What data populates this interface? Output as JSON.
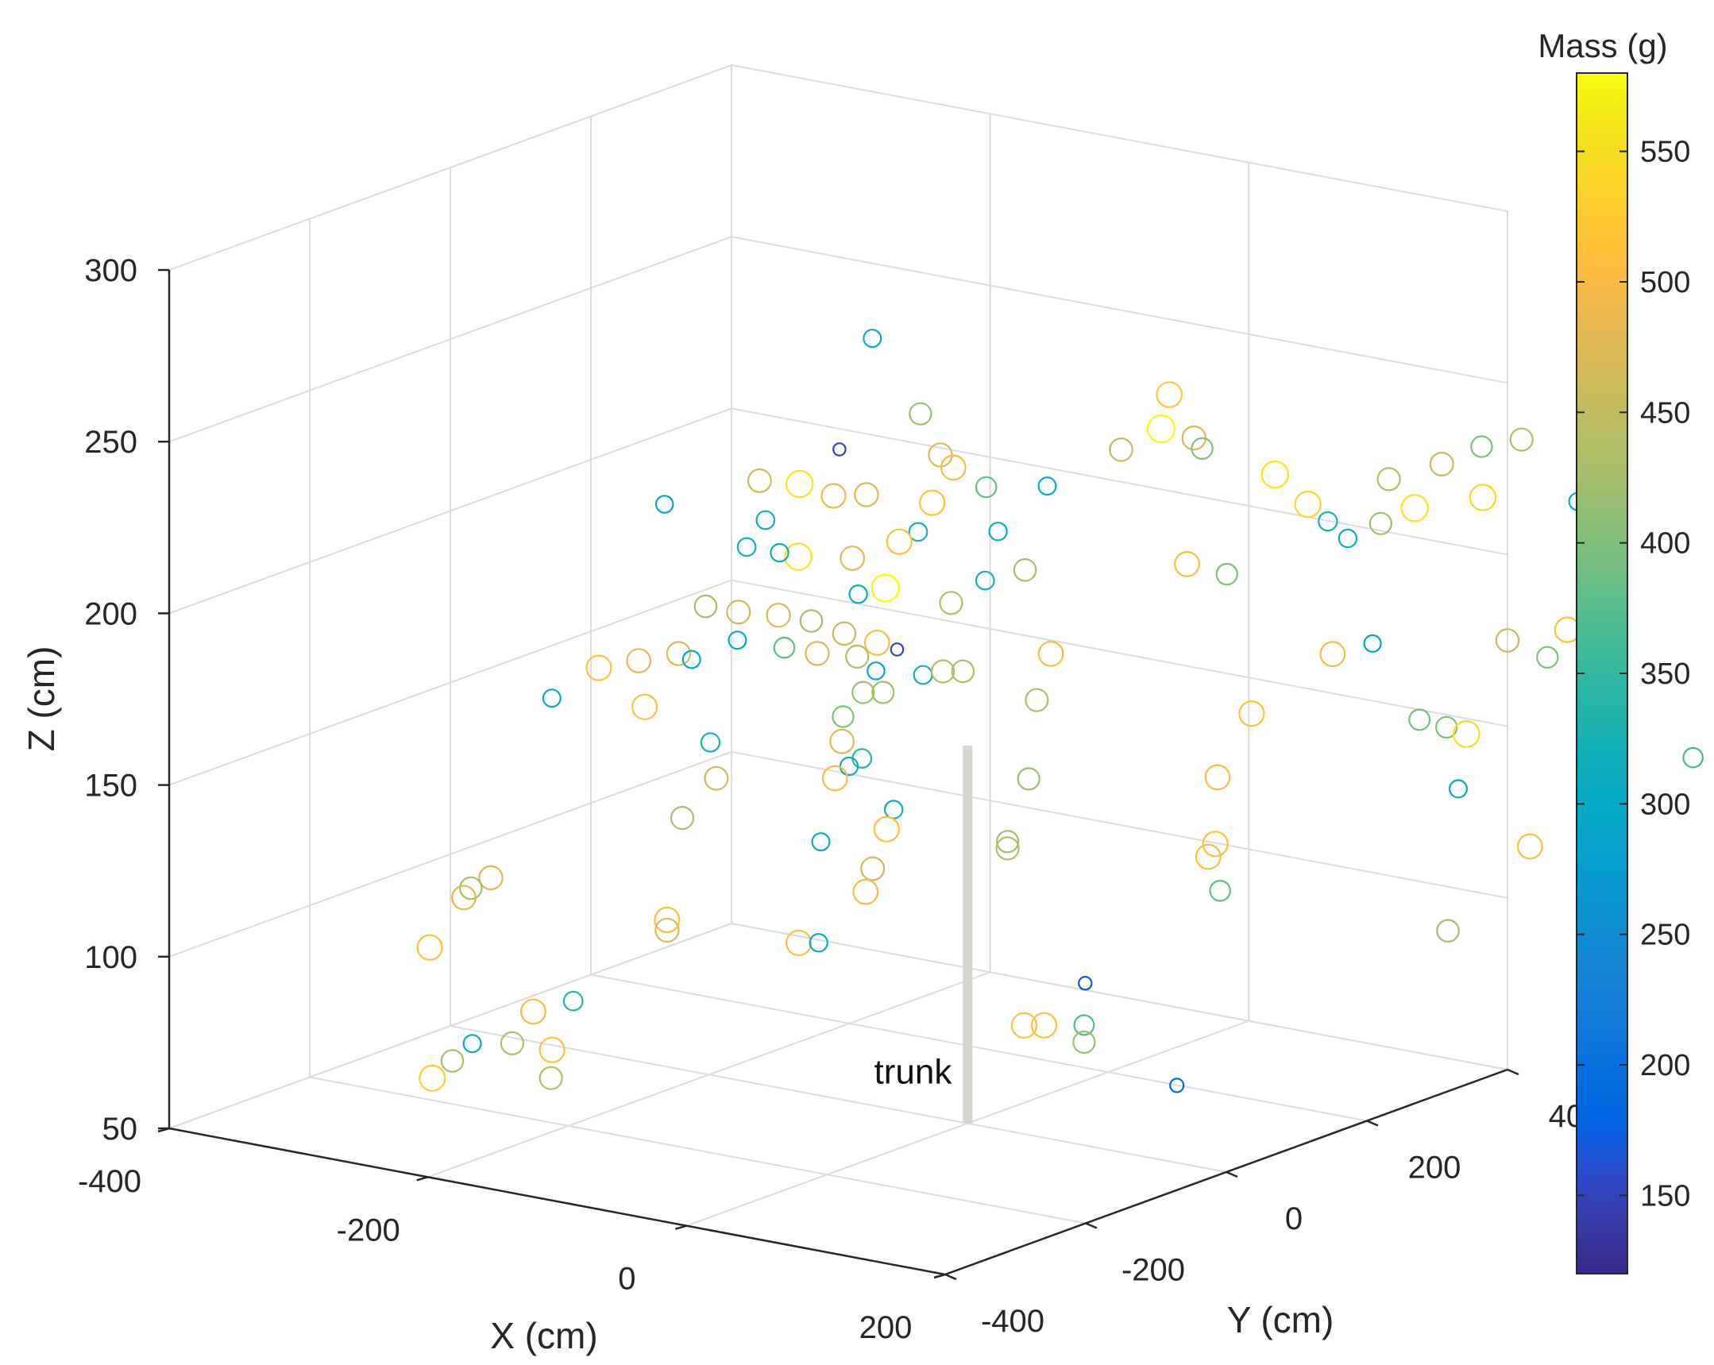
{
  "chart_data": {
    "type": "scatter3d",
    "xlabel": "X (cm)",
    "ylabel": "Y (cm)",
    "zlabel": "Z (cm)",
    "xlim": [
      -400,
      200
    ],
    "ylim": [
      -400,
      400
    ],
    "zlim": [
      50,
      300
    ],
    "x_ticks": [
      "-400",
      "-200",
      "0",
      "200"
    ],
    "y_ticks": [
      "-400",
      "-200",
      "0",
      "200",
      "400"
    ],
    "z_ticks": [
      "50",
      "100",
      "150",
      "200",
      "250",
      "300"
    ],
    "grid": true,
    "colorbar": {
      "label": "Mass (g)",
      "range": [
        120,
        580
      ],
      "ticks": [
        "150",
        "200",
        "250",
        "300",
        "350",
        "400",
        "450",
        "500",
        "550"
      ],
      "colormap": "parula"
    },
    "annotation": {
      "text": "trunk",
      "line_from": [
        0,
        0,
        50
      ],
      "line_to": [
        0,
        0,
        160
      ],
      "color": "#d8d4ce"
    },
    "points": [
      {
        "x": -90,
        "y": 30,
        "z": 270,
        "mass": 300
      },
      {
        "x": -180,
        "y": -100,
        "z": 225,
        "mass": 290
      },
      {
        "x": -110,
        "y": 20,
        "z": 237,
        "mass": 150
      },
      {
        "x": -150,
        "y": -20,
        "z": 228,
        "mass": 460
      },
      {
        "x": -130,
        "y": 0,
        "z": 227,
        "mass": 560
      },
      {
        "x": -120,
        "y": 30,
        "z": 222,
        "mass": 490
      },
      {
        "x": -140,
        "y": -30,
        "z": 218,
        "mass": 320
      },
      {
        "x": -100,
        "y": 40,
        "z": 223,
        "mass": 470
      },
      {
        "x": -80,
        "y": 80,
        "z": 245,
        "mass": 420
      },
      {
        "x": -70,
        "y": 90,
        "z": 233,
        "mass": 470
      },
      {
        "x": -60,
        "y": 90,
        "z": 230,
        "mass": 500
      },
      {
        "x": -40,
        "y": 100,
        "z": 225,
        "mass": 380
      },
      {
        "x": -60,
        "y": 60,
        "z": 222,
        "mass": 510
      },
      {
        "x": -20,
        "y": 150,
        "z": 223,
        "mass": 300
      },
      {
        "x": 10,
        "y": 200,
        "z": 232,
        "mass": 450
      },
      {
        "x": 30,
        "y": 220,
        "z": 238,
        "mass": 580
      },
      {
        "x": 20,
        "y": 250,
        "z": 245,
        "mass": 520
      },
      {
        "x": 50,
        "y": 230,
        "z": 236,
        "mass": 470
      },
      {
        "x": 40,
        "y": 260,
        "z": 230,
        "mass": 400
      },
      {
        "x": 80,
        "y": 290,
        "z": 223,
        "mass": 560
      },
      {
        "x": 100,
        "y": 300,
        "z": 215,
        "mass": 540
      },
      {
        "x": 110,
        "y": 310,
        "z": 210,
        "mass": 330
      },
      {
        "x": 120,
        "y": 320,
        "z": 205,
        "mass": 310
      },
      {
        "x": 140,
        "y": 330,
        "z": 210,
        "mass": 420
      },
      {
        "x": 130,
        "y": 360,
        "z": 220,
        "mass": 440
      },
      {
        "x": 160,
        "y": 380,
        "z": 225,
        "mass": 460
      },
      {
        "x": 180,
        "y": 400,
        "z": 230,
        "mass": 400
      },
      {
        "x": 200,
        "y": 420,
        "z": 232,
        "mass": 440
      },
      {
        "x": 150,
        "y": 360,
        "z": 213,
        "mass": 560
      },
      {
        "x": 170,
        "y": 420,
        "z": 213,
        "mass": 540
      },
      {
        "x": 200,
        "y": 500,
        "z": 208,
        "mass": 300
      },
      {
        "x": 210,
        "y": 510,
        "z": 208,
        "mass": 300
      },
      {
        "x": -20,
        "y": 80,
        "z": 215,
        "mass": 310
      },
      {
        "x": -60,
        "y": 40,
        "z": 215,
        "mass": 320
      },
      {
        "x": -80,
        "y": 50,
        "z": 210,
        "mass": 510
      },
      {
        "x": -120,
        "y": -20,
        "z": 208,
        "mass": 560
      },
      {
        "x": -160,
        "y": -20,
        "z": 208,
        "mass": 320
      },
      {
        "x": -140,
        "y": -10,
        "z": 207,
        "mass": 310
      },
      {
        "x": -100,
        "y": 20,
        "z": 206,
        "mass": 480
      },
      {
        "x": -30,
        "y": 80,
        "z": 200,
        "mass": 320
      },
      {
        "x": -10,
        "y": 100,
        "z": 203,
        "mass": 430
      },
      {
        "x": -40,
        "y": 50,
        "z": 195,
        "mass": 440
      },
      {
        "x": 50,
        "y": 220,
        "z": 200,
        "mass": 500
      },
      {
        "x": 70,
        "y": 240,
        "z": 197,
        "mass": 400
      },
      {
        "x": -90,
        "y": 10,
        "z": 197,
        "mass": 310
      },
      {
        "x": -80,
        "y": 30,
        "z": 198,
        "mass": 580
      },
      {
        "x": -170,
        "y": -60,
        "z": 193,
        "mass": 430
      },
      {
        "x": -150,
        "y": -50,
        "z": 192,
        "mass": 460
      },
      {
        "x": -130,
        "y": -30,
        "z": 191,
        "mass": 470
      },
      {
        "x": -110,
        "y": -20,
        "z": 190,
        "mass": 430
      },
      {
        "x": -90,
        "y": -10,
        "z": 187,
        "mass": 450
      },
      {
        "x": -70,
        "y": 0,
        "z": 185,
        "mass": 500
      },
      {
        "x": -60,
        "y": 10,
        "z": 183,
        "mass": 150
      },
      {
        "x": -140,
        "y": -70,
        "z": 186,
        "mass": 300
      },
      {
        "x": -120,
        "y": -40,
        "z": 183,
        "mass": 380
      },
      {
        "x": -100,
        "y": -30,
        "z": 182,
        "mass": 470
      },
      {
        "x": -80,
        "y": -10,
        "z": 181,
        "mass": 440
      },
      {
        "x": -180,
        "y": -80,
        "z": 180,
        "mass": 470
      },
      {
        "x": -200,
        "y": -100,
        "z": 178,
        "mass": 480
      },
      {
        "x": -220,
        "y": -120,
        "z": 176,
        "mass": 510
      },
      {
        "x": -170,
        "y": -80,
        "z": 179,
        "mass": 300
      },
      {
        "x": -60,
        "y": -20,
        "z": 179,
        "mass": 290
      },
      {
        "x": -40,
        "y": 10,
        "z": 177,
        "mass": 320
      },
      {
        "x": -30,
        "y": 20,
        "z": 178,
        "mass": 440
      },
      {
        "x": -20,
        "y": 30,
        "z": 178,
        "mass": 430
      },
      {
        "x": 10,
        "y": 100,
        "z": 180,
        "mass": 500
      },
      {
        "x": -70,
        "y": -20,
        "z": 172,
        "mass": 420
      },
      {
        "x": -60,
        "y": -10,
        "z": 172,
        "mass": 420
      },
      {
        "x": 10,
        "y": 80,
        "z": 168,
        "mass": 440
      },
      {
        "x": -240,
        "y": -150,
        "z": 168,
        "mass": 300
      },
      {
        "x": -190,
        "y": -110,
        "z": 166,
        "mass": 510
      },
      {
        "x": -80,
        "y": -30,
        "z": 165,
        "mass": 400
      },
      {
        "x": 130,
        "y": 280,
        "z": 175,
        "mass": 500
      },
      {
        "x": 150,
        "y": 300,
        "z": 178,
        "mass": 280
      },
      {
        "x": 200,
        "y": 400,
        "z": 175,
        "mass": 450
      },
      {
        "x": 230,
        "y": 430,
        "z": 178,
        "mass": 510
      },
      {
        "x": 220,
        "y": 420,
        "z": 170,
        "mass": 400
      },
      {
        "x": 240,
        "y": 440,
        "z": 170,
        "mass": 400
      },
      {
        "x": 100,
        "y": 220,
        "z": 160,
        "mass": 510
      },
      {
        "x": -150,
        "y": -90,
        "z": 157,
        "mass": 330
      },
      {
        "x": -70,
        "y": -50,
        "z": 160,
        "mass": 480
      },
      {
        "x": -60,
        "y": -40,
        "z": 155,
        "mass": 340
      },
      {
        "x": -70,
        "y": -40,
        "z": 152,
        "mass": 310
      },
      {
        "x": -70,
        "y": -60,
        "z": 150,
        "mass": 500
      },
      {
        "x": -140,
        "y": -100,
        "z": 148,
        "mass": 460
      },
      {
        "x": 20,
        "y": 50,
        "z": 148,
        "mass": 420
      },
      {
        "x": 170,
        "y": 330,
        "z": 155,
        "mass": 390
      },
      {
        "x": 180,
        "y": 350,
        "z": 152,
        "mass": 400
      },
      {
        "x": 190,
        "y": 360,
        "z": 150,
        "mass": 550
      },
      {
        "x": 250,
        "y": 450,
        "z": 155,
        "mass": 360
      },
      {
        "x": 300,
        "y": 480,
        "z": 142,
        "mass": 360
      },
      {
        "x": -30,
        "y": -50,
        "z": 143,
        "mass": 310
      },
      {
        "x": -30,
        "y": -60,
        "z": 138,
        "mass": 510
      },
      {
        "x": 90,
        "y": 190,
        "z": 143,
        "mass": 500
      },
      {
        "x": -150,
        "y": -130,
        "z": 138,
        "mass": 440
      },
      {
        "x": 200,
        "y": 330,
        "z": 137,
        "mass": 300
      },
      {
        "x": -70,
        "y": -80,
        "z": 133,
        "mass": 300
      },
      {
        "x": 20,
        "y": 20,
        "z": 132,
        "mass": 420
      },
      {
        "x": 20,
        "y": 20,
        "z": 130,
        "mass": 440
      },
      {
        "x": -30,
        "y": -80,
        "z": 128,
        "mass": 460
      },
      {
        "x": 110,
        "y": 150,
        "z": 128,
        "mass": 510
      },
      {
        "x": 110,
        "y": 140,
        "z": 125,
        "mass": 500
      },
      {
        "x": -30,
        "y": -90,
        "z": 122,
        "mass": 500
      },
      {
        "x": 250,
        "y": 340,
        "z": 123,
        "mass": 500
      },
      {
        "x": 130,
        "y": 120,
        "z": 118,
        "mass": 380
      },
      {
        "x": -260,
        "y": -200,
        "z": 118,
        "mass": 470
      },
      {
        "x": -270,
        "y": -210,
        "z": 115,
        "mass": 430
      },
      {
        "x": -270,
        "y": -220,
        "z": 113,
        "mass": 480
      },
      {
        "x": -140,
        "y": -170,
        "z": 112,
        "mass": 510
      },
      {
        "x": -140,
        "y": -170,
        "z": 109,
        "mass": 470
      },
      {
        "x": -60,
        "y": -130,
        "z": 108,
        "mass": 510
      },
      {
        "x": -50,
        "y": -120,
        "z": 108,
        "mass": 310
      },
      {
        "x": 230,
        "y": 260,
        "z": 103,
        "mass": 430
      },
      {
        "x": -280,
        "y": -250,
        "z": 100,
        "mass": 510
      },
      {
        "x": 80,
        "y": 20,
        "z": 95,
        "mass": 170
      },
      {
        "x": -180,
        "y": -230,
        "z": 90,
        "mass": 340
      },
      {
        "x": -200,
        "y": -250,
        "z": 87,
        "mass": 500
      },
      {
        "x": 60,
        "y": -30,
        "z": 85,
        "mass": 510
      },
      {
        "x": 70,
        "y": -20,
        "z": 85,
        "mass": 510
      },
      {
        "x": 90,
        "y": 0,
        "z": 85,
        "mass": 370
      },
      {
        "x": 90,
        "y": 0,
        "z": 80,
        "mass": 420
      },
      {
        "x": -220,
        "y": -300,
        "z": 80,
        "mass": 300
      },
      {
        "x": -200,
        "y": -280,
        "z": 80,
        "mass": 440
      },
      {
        "x": -180,
        "y": -260,
        "z": 78,
        "mass": 510
      },
      {
        "x": -230,
        "y": -310,
        "z": 75,
        "mass": 430
      },
      {
        "x": -240,
        "y": -320,
        "z": 70,
        "mass": 530
      },
      {
        "x": -170,
        "y": -280,
        "z": 72,
        "mass": 440
      },
      {
        "x": 140,
        "y": 40,
        "z": 68,
        "mass": 190
      }
    ]
  }
}
